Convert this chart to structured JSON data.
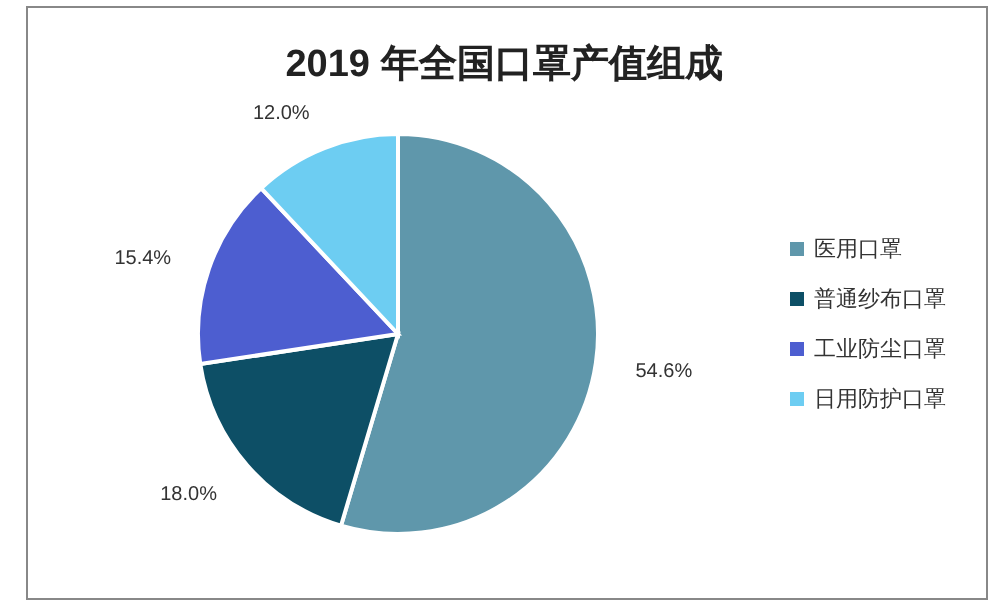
{
  "chart_data": {
    "type": "pie",
    "title": "2019 年全国口罩产值组成",
    "categories": [
      "医用口罩",
      "普通纱布口罩",
      "工业防尘口罩",
      "日用防护口罩"
    ],
    "values": [
      54.6,
      18.0,
      15.4,
      12.0
    ],
    "colors": [
      "#5f97ab",
      "#0d4f66",
      "#4d5ed0",
      "#6dcdf2"
    ],
    "value_labels": [
      "54.6%",
      "18.0%",
      "15.4%",
      "12.0%"
    ],
    "legend": "right"
  }
}
